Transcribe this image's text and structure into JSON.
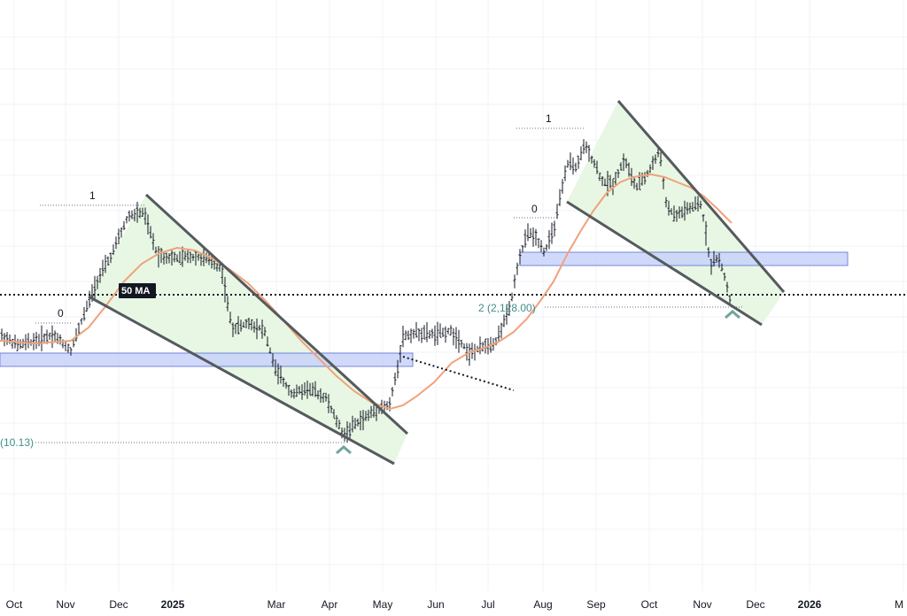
{
  "chart_data": {
    "type": "ohlc",
    "title": "",
    "xlabel": "",
    "ylabel": "",
    "colors": {
      "bars": "#131722",
      "moving_average": "#f0a27a",
      "wedge_fill": "#e6f6e1",
      "wedge_line": "#555a5e",
      "support_zone_fill": "#c9d3fb",
      "support_zone_border": "#5b72d6",
      "target_text": "#3f8f87",
      "arrow": "#6fa59a"
    },
    "x_ticks": [
      {
        "label": "Oct",
        "bold": false
      },
      {
        "label": "Nov",
        "bold": false
      },
      {
        "label": "Dec",
        "bold": false
      },
      {
        "label": "2025",
        "bold": true
      },
      {
        "label": "Mar",
        "bold": false
      },
      {
        "label": "Apr",
        "bold": false
      },
      {
        "label": "May",
        "bold": false
      },
      {
        "label": "Jun",
        "bold": false
      },
      {
        "label": "Jul",
        "bold": false
      },
      {
        "label": "Aug",
        "bold": false
      },
      {
        "label": "Sep",
        "bold": false
      },
      {
        "label": "Oct",
        "bold": false
      },
      {
        "label": "Nov",
        "bold": false
      },
      {
        "label": "Dec",
        "bold": false
      },
      {
        "label": "2026",
        "bold": true
      },
      {
        "label": "M",
        "bold": false
      }
    ],
    "moving_average_label": "50 MA",
    "fib_labels": {
      "first_swing_low": "0",
      "first_swing_high": "1",
      "second_swing_low": "0",
      "second_swing_high": "1"
    },
    "targets": [
      {
        "label": "(10.13)"
      },
      {
        "label": "2 (2,128.00)"
      }
    ]
  }
}
